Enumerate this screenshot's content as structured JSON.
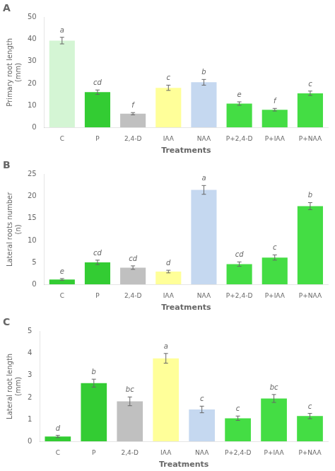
{
  "chart_data": [
    {
      "type": "bar",
      "title": "A",
      "xlabel": "Treatments",
      "ylabel": "Primary root length\n(mm)",
      "categories": [
        "C",
        "P",
        "2,4-D",
        "IAA",
        "NAA",
        "P+2,4-D",
        "P+IAA",
        "P+NAA"
      ],
      "values": [
        39.5,
        16.0,
        6.2,
        18.0,
        20.5,
        10.8,
        8.0,
        15.5
      ],
      "errors": [
        1.5,
        1.0,
        0.5,
        1.2,
        1.3,
        0.8,
        0.6,
        1.0
      ],
      "annotations": [
        "a",
        "cd",
        "f",
        "c",
        "b",
        "e",
        "f",
        "c"
      ],
      "colors": [
        "#d4f5d4",
        "#33cc33",
        "#c0c0c0",
        "#ffff99",
        "#c5d8f0",
        "#44dd44",
        "#44dd44",
        "#44dd44"
      ],
      "ylim": [
        0,
        50
      ],
      "yticks": [
        0,
        10,
        20,
        30,
        40,
        50
      ],
      "grid": false
    },
    {
      "type": "bar",
      "title": "B",
      "xlabel": "Treatments",
      "ylabel": "Lateral roots number\n(n)",
      "categories": [
        "C",
        "P",
        "2,4-D",
        "IAA",
        "NAA",
        "P+2,4-D",
        "P+IAA",
        "P+NAA"
      ],
      "values": [
        1.1,
        5.0,
        3.8,
        2.9,
        21.5,
        4.6,
        6.1,
        17.8
      ],
      "errors": [
        0.2,
        0.5,
        0.4,
        0.3,
        1.0,
        0.5,
        0.6,
        0.8
      ],
      "annotations": [
        "e",
        "cd",
        "cd",
        "d",
        "a",
        "cd",
        "c",
        "b"
      ],
      "colors": [
        "#33cc33",
        "#33cc33",
        "#c0c0c0",
        "#ffff99",
        "#c5d8f0",
        "#44dd44",
        "#44dd44",
        "#44dd44"
      ],
      "ylim": [
        0,
        25
      ],
      "yticks": [
        0,
        5,
        10,
        15,
        20,
        25
      ],
      "grid": false
    },
    {
      "type": "bar",
      "title": "C",
      "xlabel": "Treatments",
      "ylabel": "Lateral root length\n(mm)",
      "categories": [
        "C",
        "P",
        "2,4-D",
        "IAA",
        "NAA",
        "P+2,4-D",
        "P+IAA",
        "P+NAA"
      ],
      "values": [
        0.22,
        2.65,
        1.82,
        3.78,
        1.45,
        1.05,
        1.95,
        1.15
      ],
      "errors": [
        0.05,
        0.18,
        0.2,
        0.22,
        0.15,
        0.1,
        0.18,
        0.12
      ],
      "annotations": [
        "d",
        "b",
        "bc",
        "a",
        "c",
        "c",
        "bc",
        "c"
      ],
      "colors": [
        "#33cc33",
        "#33cc33",
        "#c0c0c0",
        "#ffff99",
        "#c5d8f0",
        "#44dd44",
        "#44dd44",
        "#44dd44"
      ],
      "ylim": [
        0,
        5
      ],
      "yticks": [
        0,
        1,
        2,
        3,
        4,
        5
      ],
      "grid": false
    }
  ]
}
